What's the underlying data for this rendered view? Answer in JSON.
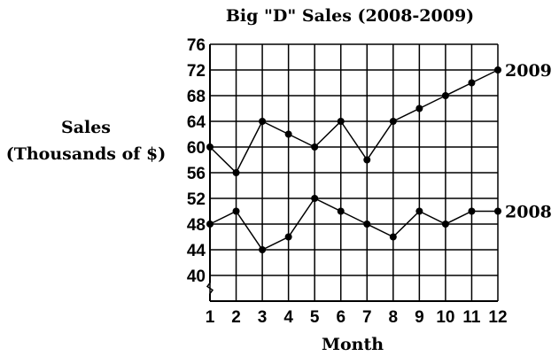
{
  "chart_data": {
    "type": "line",
    "title": "Big \"D\" Sales (2008-2009)",
    "xlabel": "Month",
    "ylabel_lines": [
      "Sales",
      "(Thousands of $)"
    ],
    "x": [
      1,
      2,
      3,
      4,
      5,
      6,
      7,
      8,
      9,
      10,
      11,
      12
    ],
    "x_tick_labels": [
      "1",
      "2",
      "3",
      "4",
      "5",
      "6",
      "7",
      "8",
      "9",
      "10",
      "11",
      "12"
    ],
    "y_tick_labels": [
      "76",
      "72",
      "68",
      "64",
      "60",
      "56",
      "52",
      "48",
      "44",
      "40"
    ],
    "y_ticks": [
      76,
      72,
      68,
      64,
      60,
      56,
      52,
      48,
      44,
      40
    ],
    "ylim": [
      36,
      76
    ],
    "xlim": [
      1,
      12
    ],
    "grid": true,
    "y_axis_break": true,
    "series": [
      {
        "name": "2009",
        "values": [
          60,
          56,
          64,
          62,
          60,
          64,
          58,
          64,
          66,
          68,
          70,
          72
        ]
      },
      {
        "name": "2008",
        "values": [
          48,
          50,
          44,
          46,
          52,
          50,
          48,
          46,
          50,
          48,
          50,
          50
        ]
      }
    ],
    "line_color": "#000000"
  }
}
